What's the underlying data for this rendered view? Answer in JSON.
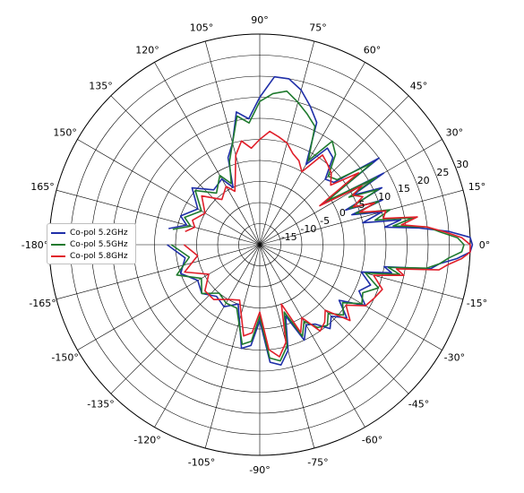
{
  "chart_data": {
    "type": "polar-line",
    "title": "",
    "angle_ticks": [
      "0°",
      "15°",
      "30°",
      "45°",
      "60°",
      "75°",
      "90°",
      "105°",
      "120°",
      "135°",
      "150°",
      "165°",
      "-180°",
      "-165°",
      "-150°",
      "-135°",
      "-120°",
      "-105°",
      "-90°",
      "-75°",
      "-60°",
      "-45°",
      "-30°",
      "-15°"
    ],
    "angle_values": [
      0,
      15,
      30,
      45,
      60,
      75,
      90,
      105,
      120,
      135,
      150,
      165,
      180,
      -165,
      -150,
      -135,
      -120,
      -105,
      -90,
      -75,
      -60,
      -45,
      -30,
      -15
    ],
    "radial_ticks": [
      "-15",
      "-10",
      "-5",
      "0",
      "5",
      "10",
      "15",
      "20",
      "25",
      "30"
    ],
    "radial_values": [
      -15,
      -10,
      -5,
      0,
      5,
      10,
      15,
      20,
      25,
      30
    ],
    "rlim": [
      -20,
      30
    ],
    "grid": true,
    "legend_placement": "center-left",
    "theta_unit": "deg",
    "series": [
      {
        "name": "Co-pol 5.2GHz",
        "color": "#1f2fa8",
        "theta": [
          -180,
          -170,
          -160,
          -150,
          -140,
          -130,
          -120,
          -110,
          -100,
          -95,
          -90,
          -85,
          -80,
          -75,
          -70,
          -65,
          -60,
          -55,
          -50,
          -45,
          -40,
          -35,
          -30,
          -25,
          -20,
          -15,
          -12,
          -10,
          -8,
          -6,
          -4,
          -2,
          0,
          2,
          4,
          6,
          8,
          10,
          12,
          15,
          18,
          20,
          22,
          25,
          28,
          30,
          33,
          36,
          40,
          45,
          50,
          55,
          60,
          65,
          70,
          75,
          80,
          85,
          90,
          95,
          100,
          105,
          110,
          115,
          120,
          130,
          140,
          150,
          160,
          165,
          170,
          175,
          180
        ],
        "r": [
          2,
          -2,
          0,
          -3,
          -2,
          -4,
          -3,
          -5,
          5,
          4,
          -2,
          8,
          9,
          6,
          -2,
          5,
          2,
          3,
          6,
          4,
          7,
          3,
          9,
          6,
          8,
          5,
          12,
          10,
          21,
          23,
          27,
          30,
          30.5,
          30,
          25,
          18,
          10,
          14,
          5,
          10,
          3,
          11,
          2,
          12,
          5,
          14,
          -2,
          15,
          3,
          2,
          7,
          8,
          2,
          12,
          15,
          18,
          20,
          20,
          15,
          10,
          12,
          5,
          2,
          -5,
          -2,
          -3,
          1,
          -3,
          0,
          -2,
          2
        ],
        "theta_start_is_continuous": true
      },
      {
        "name": "Co-pol 5.5GHz",
        "color": "#1f7a2e",
        "theta": [
          -180,
          -170,
          -160,
          -150,
          -140,
          -130,
          -120,
          -110,
          -100,
          -95,
          -90,
          -85,
          -80,
          -75,
          -70,
          -65,
          -60,
          -55,
          -50,
          -45,
          -40,
          -35,
          -30,
          -25,
          -20,
          -15,
          -12,
          -10,
          -8,
          -6,
          -4,
          -2,
          0,
          2,
          4,
          6,
          8,
          10,
          12,
          15,
          18,
          20,
          22,
          25,
          28,
          30,
          33,
          36,
          40,
          45,
          50,
          55,
          60,
          65,
          70,
          75,
          80,
          85,
          90,
          95,
          100,
          105,
          110,
          115,
          120,
          130,
          140,
          150,
          160,
          165,
          170,
          175,
          180
        ],
        "r": [
          1,
          -3,
          1,
          -4,
          -2,
          -5,
          -4,
          -4,
          4,
          3,
          -3,
          7,
          8,
          5,
          -3,
          4,
          1,
          4,
          5,
          3,
          6,
          4,
          8,
          7,
          10,
          6,
          14,
          11,
          20,
          23,
          25,
          28,
          28.5,
          27,
          23,
          20,
          12,
          17,
          8,
          12,
          4,
          10,
          3,
          11,
          4,
          12,
          -1,
          13,
          4,
          3,
          8,
          10,
          3,
          11,
          13,
          15,
          17,
          16,
          14,
          9,
          11,
          5,
          1,
          -4,
          -1,
          -4,
          0,
          -4,
          -1,
          -3,
          1
        ]
      },
      {
        "name": "Co-pol 5.8GHz",
        "color": "#e01f2a",
        "theta": [
          -180,
          -170,
          -160,
          -150,
          -140,
          -130,
          -120,
          -110,
          -100,
          -95,
          -90,
          -85,
          -80,
          -75,
          -70,
          -65,
          -60,
          -55,
          -50,
          -45,
          -40,
          -35,
          -30,
          -25,
          -20,
          -15,
          -12,
          -10,
          -8,
          -6,
          -4,
          -2,
          0,
          2,
          4,
          6,
          8,
          10,
          12,
          15,
          18,
          20,
          22,
          25,
          28,
          30,
          33,
          36,
          40,
          45,
          50,
          55,
          60,
          65,
          70,
          75,
          80,
          85,
          90,
          95,
          100,
          105,
          110,
          115,
          120,
          130,
          140,
          150,
          160,
          165,
          170,
          175,
          180
        ],
        "r": [
          -2,
          -5,
          -1,
          -6,
          -3,
          -3,
          -5,
          -6,
          2,
          1,
          -4,
          5,
          7,
          4,
          -5,
          3,
          0,
          5,
          4,
          2,
          8,
          5,
          9,
          10,
          11,
          8,
          15,
          13,
          23,
          25,
          28,
          30,
          30,
          28,
          24,
          20,
          14,
          18,
          10,
          11,
          5,
          9,
          4,
          7,
          5,
          8,
          -3,
          9,
          2,
          4,
          5,
          6,
          0,
          2,
          3,
          5,
          6,
          7,
          5,
          3,
          5,
          2,
          -3,
          -6,
          -4,
          -6,
          -2,
          -5,
          -3,
          -4,
          -2
        ]
      }
    ]
  }
}
